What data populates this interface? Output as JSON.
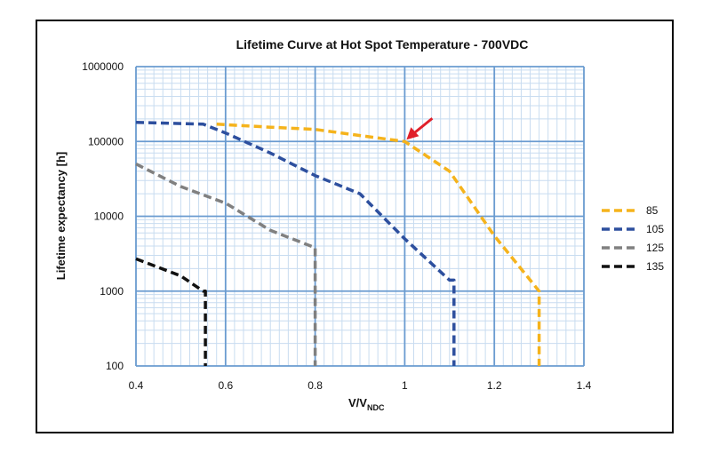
{
  "chart_data": {
    "type": "line",
    "title": "Lifetime Curve at Hot Spot Temperature - 700VDC",
    "xlabel": "V/V",
    "xlabel_sub": "NDC",
    "ylabel": "Lifetime expectancy [h]",
    "xlim": [
      0.4,
      1.4
    ],
    "ylim": [
      100,
      1000000
    ],
    "yscale": "log",
    "grid": true,
    "legend_position": "right",
    "x_ticks": [
      "0.4",
      "0.6",
      "0.8",
      "1",
      "1.2",
      "1.4"
    ],
    "y_ticks": [
      "100",
      "1000",
      "10000",
      "100000",
      "1000000"
    ],
    "colors": {
      "grid_major": "#6a9bd0",
      "grid_minor": "#c8dcf0",
      "arrow": "#e0202a"
    },
    "series": [
      {
        "name": "85",
        "color": "#f5b31c",
        "points": [
          [
            0.58,
            170000
          ],
          [
            0.7,
            155000
          ],
          [
            0.8,
            145000
          ],
          [
            0.9,
            120000
          ],
          [
            1.0,
            100000
          ],
          [
            1.1,
            40000
          ],
          [
            1.2,
            5500
          ],
          [
            1.3,
            1000
          ],
          [
            1.3,
            100
          ]
        ]
      },
      {
        "name": "105",
        "color": "#2d4f9e",
        "points": [
          [
            0.4,
            180000
          ],
          [
            0.55,
            170000
          ],
          [
            0.6,
            130000
          ],
          [
            0.7,
            70000
          ],
          [
            0.8,
            35000
          ],
          [
            0.9,
            20000
          ],
          [
            1.0,
            5000
          ],
          [
            1.1,
            1400
          ],
          [
            1.11,
            1400
          ],
          [
            1.11,
            100
          ]
        ]
      },
      {
        "name": "125",
        "color": "#808080",
        "points": [
          [
            0.4,
            50000
          ],
          [
            0.5,
            25000
          ],
          [
            0.6,
            15000
          ],
          [
            0.7,
            6500
          ],
          [
            0.8,
            3800
          ],
          [
            0.8,
            100
          ]
        ]
      },
      {
        "name": "135",
        "color": "#111111",
        "points": [
          [
            0.4,
            2700
          ],
          [
            0.5,
            1600
          ],
          [
            0.55,
            1000
          ],
          [
            0.555,
            1000
          ],
          [
            0.555,
            100
          ]
        ]
      }
    ],
    "annotation": {
      "type": "arrow",
      "x": 1.0,
      "y": 100000
    }
  }
}
